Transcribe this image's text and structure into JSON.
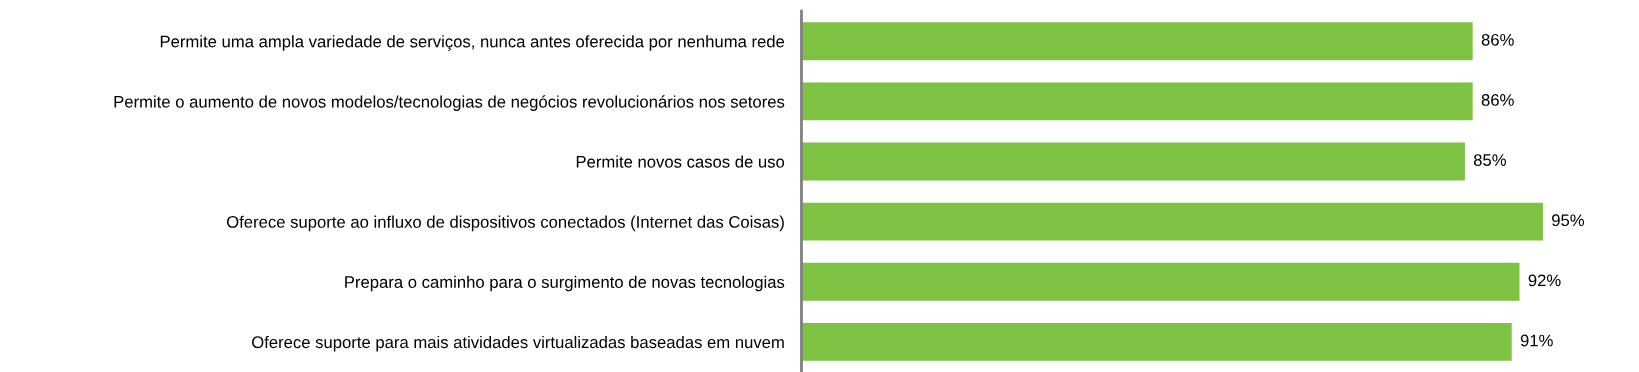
{
  "chart_data": {
    "type": "bar",
    "orientation": "horizontal",
    "categories": [
      "Permite uma ampla variedade de serviços, nunca antes oferecida por nenhuma rede",
      "Permite o aumento de novos modelos/tecnologias de negócios revolucionários nos setores",
      "Permite novos casos de uso",
      "Oferece suporte ao influxo de dispositivos conectados (Internet das Coisas)",
      "Prepara o caminho para o surgimento de novas tecnologias",
      "Oferece suporte para mais atividades virtualizadas baseadas em nuvem"
    ],
    "values": [
      86,
      86,
      85,
      95,
      92,
      91
    ],
    "value_labels": [
      "86%",
      "86%",
      "85%",
      "95%",
      "92%",
      "91%"
    ],
    "color": "#7dc242",
    "tick_labels": "y",
    "grid": false,
    "legend": false
  }
}
